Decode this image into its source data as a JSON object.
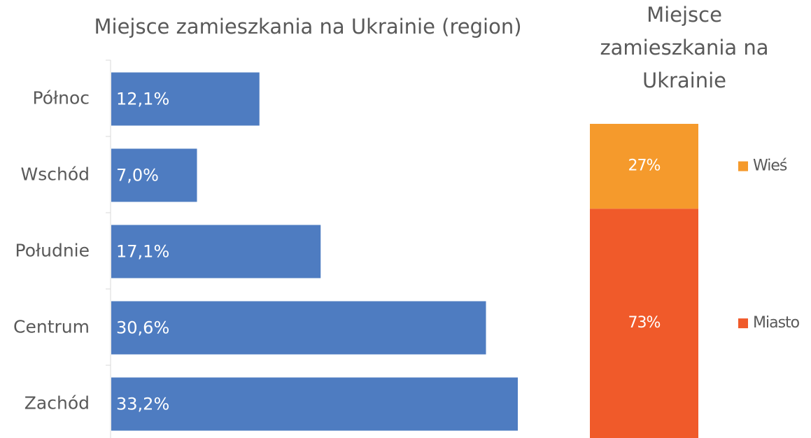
{
  "chart_data": [
    {
      "type": "barh",
      "title": "Miejsce zamieszkania na Ukrainie (region)",
      "categories": [
        "Północ",
        "Wschód",
        "Południe",
        "Centrum",
        "Zachód"
      ],
      "values": [
        12.1,
        7.0,
        17.1,
        30.6,
        33.2
      ],
      "value_labels": [
        "12,1%",
        "7,0%",
        "17,1%",
        "30,6%",
        "33,2%"
      ],
      "color": "#4e7cc1"
    },
    {
      "type": "stacked_bar",
      "title": "Miejsce zamieszkania na Ukrainie",
      "series": [
        {
          "name": "Wieś",
          "color": "#f59a2c",
          "values": [
            27
          ],
          "value_labels": [
            "27%"
          ]
        },
        {
          "name": "Miasto",
          "color": "#f05a2a",
          "values": [
            73
          ],
          "value_labels": [
            "73%"
          ]
        }
      ]
    }
  ]
}
